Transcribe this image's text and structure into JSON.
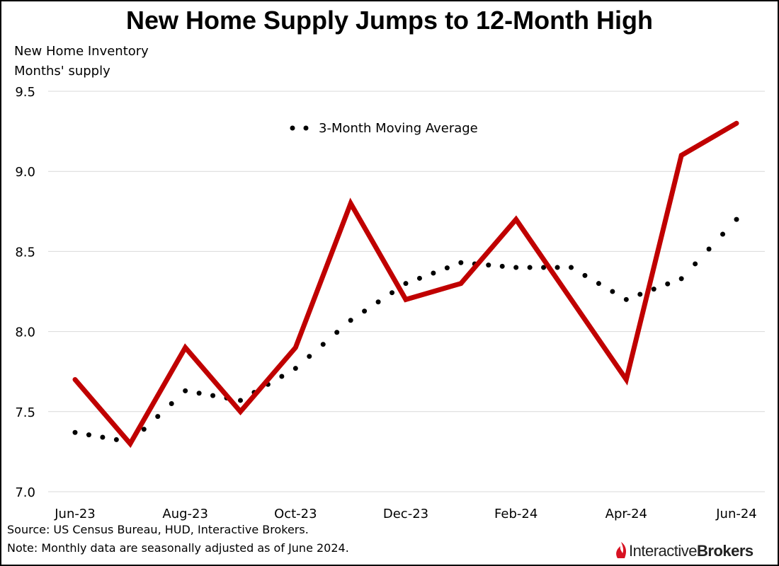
{
  "chart_data": {
    "type": "line",
    "title": "New Home Supply Jumps to 12-Month High",
    "ylabel_line1": "New Home Inventory",
    "ylabel_line2": "Months' supply",
    "x": [
      "Jun-23",
      "Jul-23",
      "Aug-23",
      "Sep-23",
      "Oct-23",
      "Nov-23",
      "Dec-23",
      "Jan-24",
      "Feb-24",
      "Mar-24",
      "Apr-24",
      "May-24",
      "Jun-24"
    ],
    "x_tick_labels": [
      "Jun-23",
      "Aug-23",
      "Oct-23",
      "Dec-23",
      "Feb-24",
      "Apr-24",
      "Jun-24"
    ],
    "ylim": [
      7.0,
      9.5
    ],
    "y_ticks": [
      "7.0",
      "7.5",
      "8.0",
      "8.5",
      "9.0",
      "9.5"
    ],
    "grid": true,
    "series": [
      {
        "values": [
          7.7,
          7.3,
          7.9,
          7.5,
          7.9,
          8.8,
          8.2,
          8.3,
          8.7,
          8.2,
          7.7,
          9.1,
          9.3
        ],
        "color": "#c00000",
        "style": "solid"
      },
      {
        "name": "3-Month Moving Average",
        "values": [
          7.37,
          7.31,
          7.63,
          7.57,
          7.77,
          8.07,
          8.3,
          8.43,
          8.4,
          8.4,
          8.2,
          8.33,
          8.7
        ],
        "color": "#000000",
        "style": "dotted"
      }
    ],
    "legend": "top-center"
  },
  "footer": {
    "source": "Source: US Census Bureau, HUD, Interactive Brokers.",
    "note": "Note: Monthly data are seasonally adjusted as of June 2024."
  },
  "logo": {
    "word1": "Interactive",
    "word2": "Brokers",
    "mark": "flame-icon",
    "color": "#d81222",
    "text_color": "#222222"
  }
}
